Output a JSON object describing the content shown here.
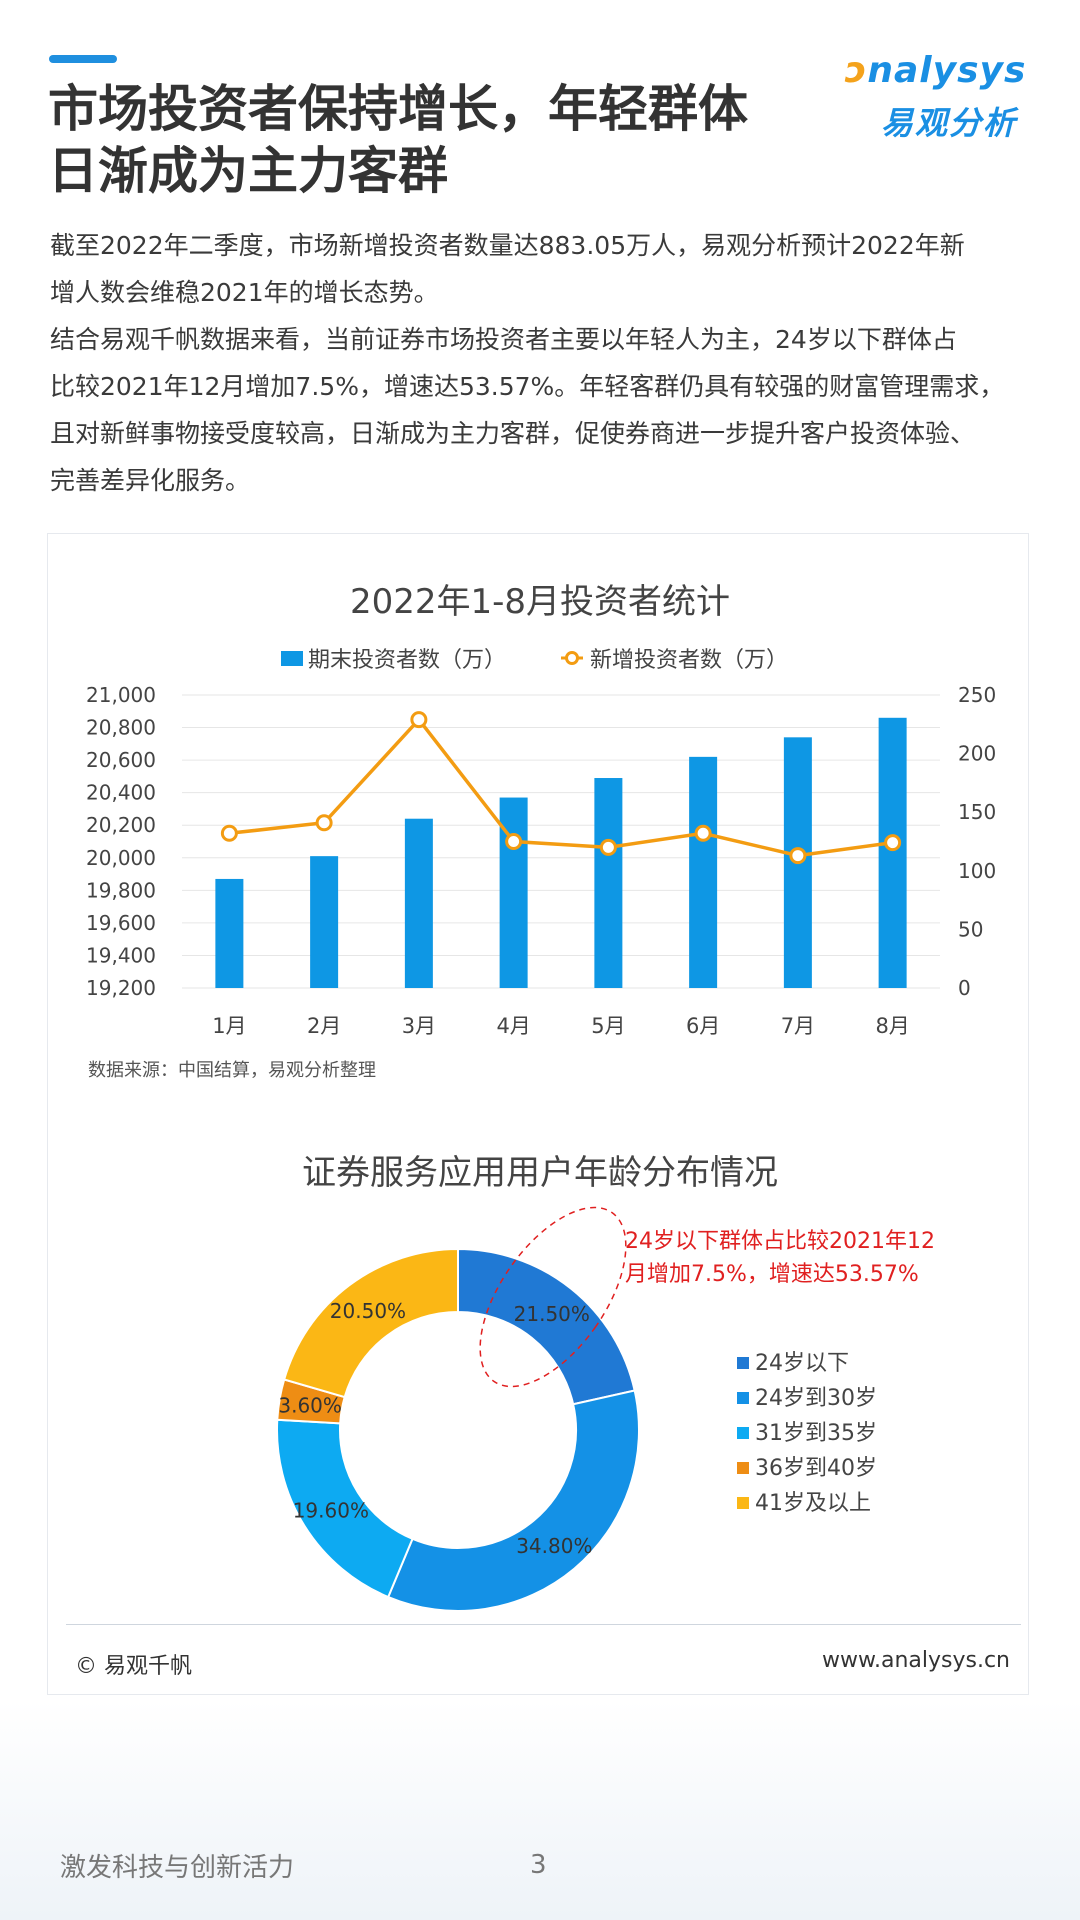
{
  "header": {
    "title_line1": "市场投资者保持增长，年轻群体",
    "title_line2": "日渐成为主力客群",
    "logo_en_prefix": "",
    "logo_en_rest": "nalysys",
    "logo_cn": "易观分析"
  },
  "intro": {
    "line1": "截至2022年二季度，市场新增投资者数量达883.05万人，易观分析预计2022年新",
    "line2": "增人数会维稳2021年的增长态势。",
    "line3": "结合易观千帆数据来看，当前证券市场投资者主要以年轻人为主，24岁以下群体占",
    "line4": "比较2021年12月增加7.5%，增速达53.57%。年轻客群仍具有较强的财富管理需求，",
    "line5": "且对新鲜事物接受度较高，日渐成为主力客群，促使券商进一步提升客户投资体验、",
    "line6": "完善差异化服务。"
  },
  "chart_data": [
    {
      "type": "bar",
      "title": "2022年1-8月投资者统计",
      "categories": [
        "1月",
        "2月",
        "3月",
        "4月",
        "5月",
        "6月",
        "7月",
        "8月"
      ],
      "series": [
        {
          "name": "期末投资者数（万）",
          "type": "bar",
          "axis": "left",
          "color": "#0e97e4",
          "values": [
            19870,
            20010,
            20240,
            20370,
            20490,
            20620,
            20740,
            20860
          ]
        },
        {
          "name": "新增投资者数（万）",
          "type": "line",
          "axis": "right",
          "color": "#f39c12",
          "values": [
            132,
            141,
            229,
            125,
            120,
            132,
            113,
            124
          ]
        }
      ],
      "y_left": {
        "min": 19200,
        "max": 21000,
        "ticks": [
          19200,
          19400,
          19600,
          19800,
          20000,
          20200,
          20400,
          20600,
          20800,
          21000
        ],
        "tick_labels": [
          "19,200",
          "19,400",
          "19,600",
          "19,800",
          "20,000",
          "20,200",
          "20,400",
          "20,600",
          "20,800",
          "21,000"
        ]
      },
      "y_right": {
        "min": 0,
        "max": 250,
        "ticks": [
          0,
          50,
          100,
          150,
          200,
          250
        ],
        "tick_labels": [
          "0",
          "50",
          "100",
          "150",
          "200",
          "250"
        ]
      },
      "legend_position": "top",
      "source": "数据来源：中国结算，易观分析整理"
    },
    {
      "type": "pie",
      "style": "donut",
      "title": "证券服务应用用户年龄分布情况",
      "slices": [
        {
          "label": "24岁以下",
          "value": 21.5,
          "display": "21.50%",
          "color": "#2079d4"
        },
        {
          "label": "24岁到30岁",
          "value": 34.8,
          "display": "34.80%",
          "color": "#1491e6"
        },
        {
          "label": "31岁到35岁",
          "value": 19.6,
          "display": "19.60%",
          "color": "#0daaf2"
        },
        {
          "label": "36岁到40岁",
          "value": 3.6,
          "display": "3.60%",
          "color": "#ee8d14"
        },
        {
          "label": "41岁及以上",
          "value": 20.5,
          "display": "20.50%",
          "color": "#fbb715"
        }
      ],
      "legend_position": "right",
      "annotation_line1": "24岁以下群体占比较2021年12",
      "annotation_line2": "月增加7.5%，增速达53.57%",
      "annotation_color": "#e02020"
    }
  ],
  "footer": {
    "copyright": "© 易观千帆",
    "website": "www.analysys.cn",
    "slogan": "激发科技与创新活力",
    "page_number": "3"
  }
}
